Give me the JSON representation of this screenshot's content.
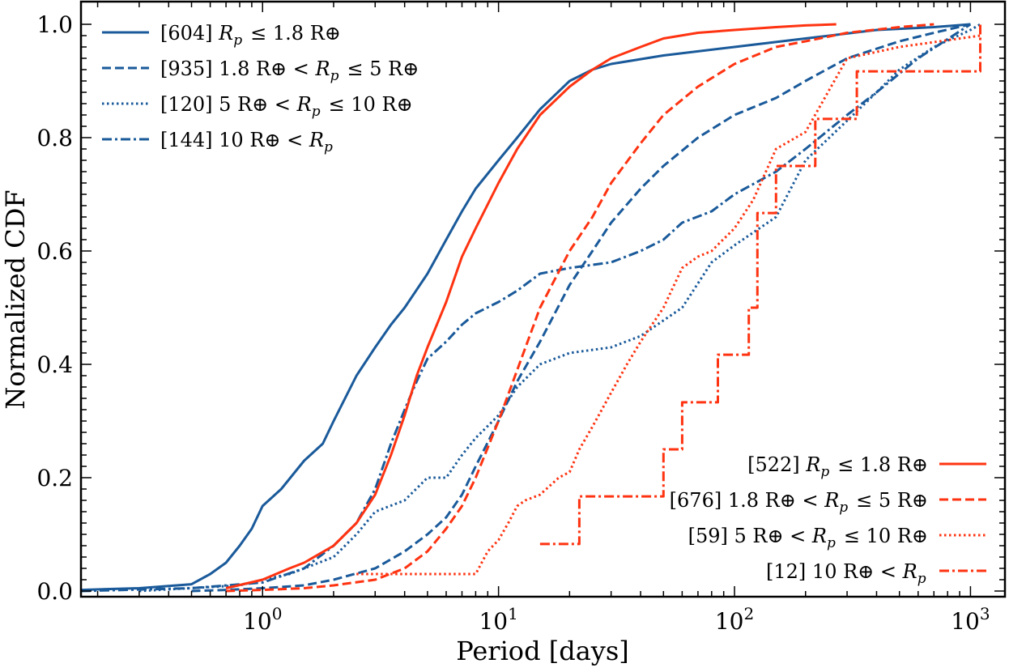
{
  "chart_data": {
    "type": "line",
    "xlabel": "Period [days]",
    "ylabel": "Normalized CDF",
    "xscale": "log",
    "xlim": [
      0.17,
      1400
    ],
    "ylim": [
      -0.01,
      1.04
    ],
    "x_ticks": [
      {
        "value": 1,
        "base": "10",
        "exp": "0"
      },
      {
        "value": 10,
        "base": "10",
        "exp": "1"
      },
      {
        "value": 100,
        "base": "10",
        "exp": "2"
      },
      {
        "value": 1000,
        "base": "10",
        "exp": "3"
      }
    ],
    "y_ticks": [
      "0.0",
      "0.2",
      "0.4",
      "0.6",
      "0.8",
      "1.0"
    ],
    "colors": {
      "blue": "#1a5a9a",
      "red": "#ff3311"
    },
    "legend_upper_left": [
      {
        "count": "[604]",
        "desc": "Rp ≤ 1.8 R⊕",
        "style": "solid",
        "color": "#1a5a9a"
      },
      {
        "count": "[935]",
        "desc": "1.8 R⊕ < Rp ≤ 5 R⊕",
        "style": "dashed",
        "color": "#1a5a9a"
      },
      {
        "count": "[120]",
        "desc": "5 R⊕ < Rp ≤ 10 R⊕",
        "style": "dotted",
        "color": "#1a5a9a"
      },
      {
        "count": "[144]",
        "desc": "10 R⊕ < Rp",
        "style": "dashdot",
        "color": "#1a5a9a"
      }
    ],
    "legend_lower_right": [
      {
        "count": "[522]",
        "desc": "Rp ≤ 1.8 R⊕",
        "style": "solid",
        "color": "#ff3311"
      },
      {
        "count": "[676]",
        "desc": "1.8 R⊕ < Rp ≤ 5 R⊕",
        "style": "dashed",
        "color": "#ff3311"
      },
      {
        "count": "[59]",
        "desc": "5 R⊕ < Rp ≤ 10 R⊕",
        "style": "dotted",
        "color": "#ff3311"
      },
      {
        "count": "[12]",
        "desc": "10 R⊕ < Rp",
        "style": "dashdot",
        "color": "#ff3311"
      }
    ],
    "series": [
      {
        "name": "[604] blue Rp<=1.8",
        "color": "#1a5a9a",
        "style": "solid",
        "x": [
          0.17,
          0.3,
          0.5,
          0.6,
          0.7,
          0.8,
          0.9,
          1.0,
          1.2,
          1.5,
          1.8,
          2.0,
          2.5,
          3.0,
          3.5,
          4.0,
          5.0,
          6.0,
          7.0,
          8.0,
          10,
          12,
          15,
          20,
          25,
          30,
          50,
          100,
          200,
          400,
          700,
          1000
        ],
        "y": [
          0.002,
          0.005,
          0.012,
          0.03,
          0.05,
          0.08,
          0.11,
          0.15,
          0.18,
          0.23,
          0.26,
          0.3,
          0.38,
          0.43,
          0.47,
          0.5,
          0.56,
          0.62,
          0.67,
          0.71,
          0.76,
          0.8,
          0.85,
          0.9,
          0.92,
          0.93,
          0.945,
          0.96,
          0.975,
          0.99,
          0.995,
          1.0
        ]
      },
      {
        "name": "[935] blue 1.8-5",
        "color": "#1a5a9a",
        "style": "dashed",
        "x": [
          0.5,
          0.7,
          1.0,
          1.5,
          2.0,
          3.0,
          4.0,
          5.0,
          6.0,
          7.0,
          8.0,
          10,
          12,
          15,
          20,
          25,
          30,
          40,
          50,
          70,
          100,
          150,
          200,
          300,
          500,
          700,
          1000
        ],
        "y": [
          0.0,
          0.002,
          0.005,
          0.01,
          0.02,
          0.04,
          0.07,
          0.1,
          0.13,
          0.17,
          0.22,
          0.3,
          0.37,
          0.44,
          0.54,
          0.6,
          0.65,
          0.71,
          0.75,
          0.8,
          0.84,
          0.87,
          0.9,
          0.94,
          0.97,
          0.985,
          1.0
        ]
      },
      {
        "name": "[120] blue 5-10",
        "color": "#1a5a9a",
        "style": "dotted",
        "x": [
          0.3,
          0.8,
          1.0,
          1.3,
          1.5,
          2.0,
          2.5,
          3.0,
          4.0,
          5.0,
          6.0,
          7.0,
          8.0,
          10,
          12,
          15,
          20,
          30,
          40,
          60,
          80,
          100,
          150,
          200,
          300,
          400,
          500,
          700,
          1000,
          1100
        ],
        "y": [
          0.0,
          0.01,
          0.02,
          0.03,
          0.04,
          0.06,
          0.1,
          0.14,
          0.16,
          0.2,
          0.2,
          0.24,
          0.27,
          0.31,
          0.36,
          0.4,
          0.42,
          0.43,
          0.45,
          0.5,
          0.58,
          0.61,
          0.66,
          0.76,
          0.83,
          0.88,
          0.92,
          0.96,
          0.99,
          1.0
        ]
      },
      {
        "name": "[144] blue 10<Rp",
        "color": "#1a5a9a",
        "style": "dashdot",
        "x": [
          0.17,
          0.5,
          1.0,
          1.5,
          2.0,
          2.5,
          3.0,
          3.5,
          4.0,
          4.5,
          5.0,
          6.0,
          7.0,
          8.0,
          10,
          12,
          15,
          20,
          30,
          40,
          50,
          60,
          80,
          100,
          150,
          200,
          300,
          400,
          600,
          1000
        ],
        "y": [
          0.0,
          0.005,
          0.015,
          0.04,
          0.08,
          0.12,
          0.18,
          0.26,
          0.32,
          0.37,
          0.41,
          0.44,
          0.47,
          0.49,
          0.51,
          0.53,
          0.56,
          0.57,
          0.58,
          0.6,
          0.62,
          0.65,
          0.67,
          0.7,
          0.74,
          0.78,
          0.84,
          0.88,
          0.94,
          1.0
        ]
      },
      {
        "name": "[522] red Rp<=1.8",
        "color": "#ff3311",
        "style": "solid",
        "x": [
          0.7,
          1.0,
          1.3,
          1.5,
          2.0,
          2.5,
          3.0,
          3.5,
          4.0,
          4.5,
          5.0,
          6.0,
          7.0,
          8.0,
          10,
          12,
          15,
          20,
          25,
          30,
          40,
          50,
          70,
          100,
          150,
          200,
          270
        ],
        "y": [
          0.005,
          0.02,
          0.04,
          0.05,
          0.08,
          0.12,
          0.17,
          0.24,
          0.31,
          0.38,
          0.43,
          0.51,
          0.59,
          0.64,
          0.72,
          0.78,
          0.84,
          0.89,
          0.92,
          0.94,
          0.96,
          0.975,
          0.985,
          0.99,
          0.995,
          0.998,
          1.0
        ]
      },
      {
        "name": "[676] red 1.8-5",
        "color": "#ff3311",
        "style": "dashed",
        "x": [
          0.7,
          1.0,
          1.5,
          2.0,
          3.0,
          4.0,
          5.0,
          6.0,
          7.0,
          8.0,
          10,
          12,
          15,
          20,
          25,
          30,
          40,
          50,
          70,
          100,
          150,
          200,
          300,
          500,
          700
        ],
        "y": [
          0.0,
          0.002,
          0.005,
          0.01,
          0.02,
          0.04,
          0.07,
          0.11,
          0.15,
          0.2,
          0.3,
          0.39,
          0.5,
          0.6,
          0.66,
          0.72,
          0.79,
          0.84,
          0.89,
          0.93,
          0.96,
          0.97,
          0.985,
          0.995,
          1.0
        ]
      },
      {
        "name": "[59] red 5-10",
        "color": "#ff3311",
        "style": "dotted",
        "x": [
          2.5,
          3.5,
          8.0,
          9.0,
          10,
          11,
          12,
          13,
          15,
          18,
          20,
          22,
          25,
          30,
          35,
          40,
          50,
          60,
          70,
          80,
          100,
          120,
          150,
          200,
          300,
          500,
          1100
        ],
        "y": [
          0.03,
          0.03,
          0.03,
          0.07,
          0.09,
          0.12,
          0.15,
          0.16,
          0.17,
          0.2,
          0.21,
          0.25,
          0.29,
          0.35,
          0.4,
          0.44,
          0.5,
          0.57,
          0.59,
          0.6,
          0.64,
          0.69,
          0.78,
          0.81,
          0.94,
          0.96,
          0.98
        ]
      },
      {
        "name": "[12] red 10<Rp",
        "color": "#ff3311",
        "style": "dashdot",
        "step": true,
        "x": [
          15,
          22,
          50,
          60,
          85,
          115,
          125,
          150,
          220,
          330,
          1100
        ],
        "y": [
          0.083,
          0.167,
          0.25,
          0.333,
          0.417,
          0.5,
          0.667,
          0.75,
          0.833,
          0.917,
          1.0
        ]
      }
    ]
  }
}
